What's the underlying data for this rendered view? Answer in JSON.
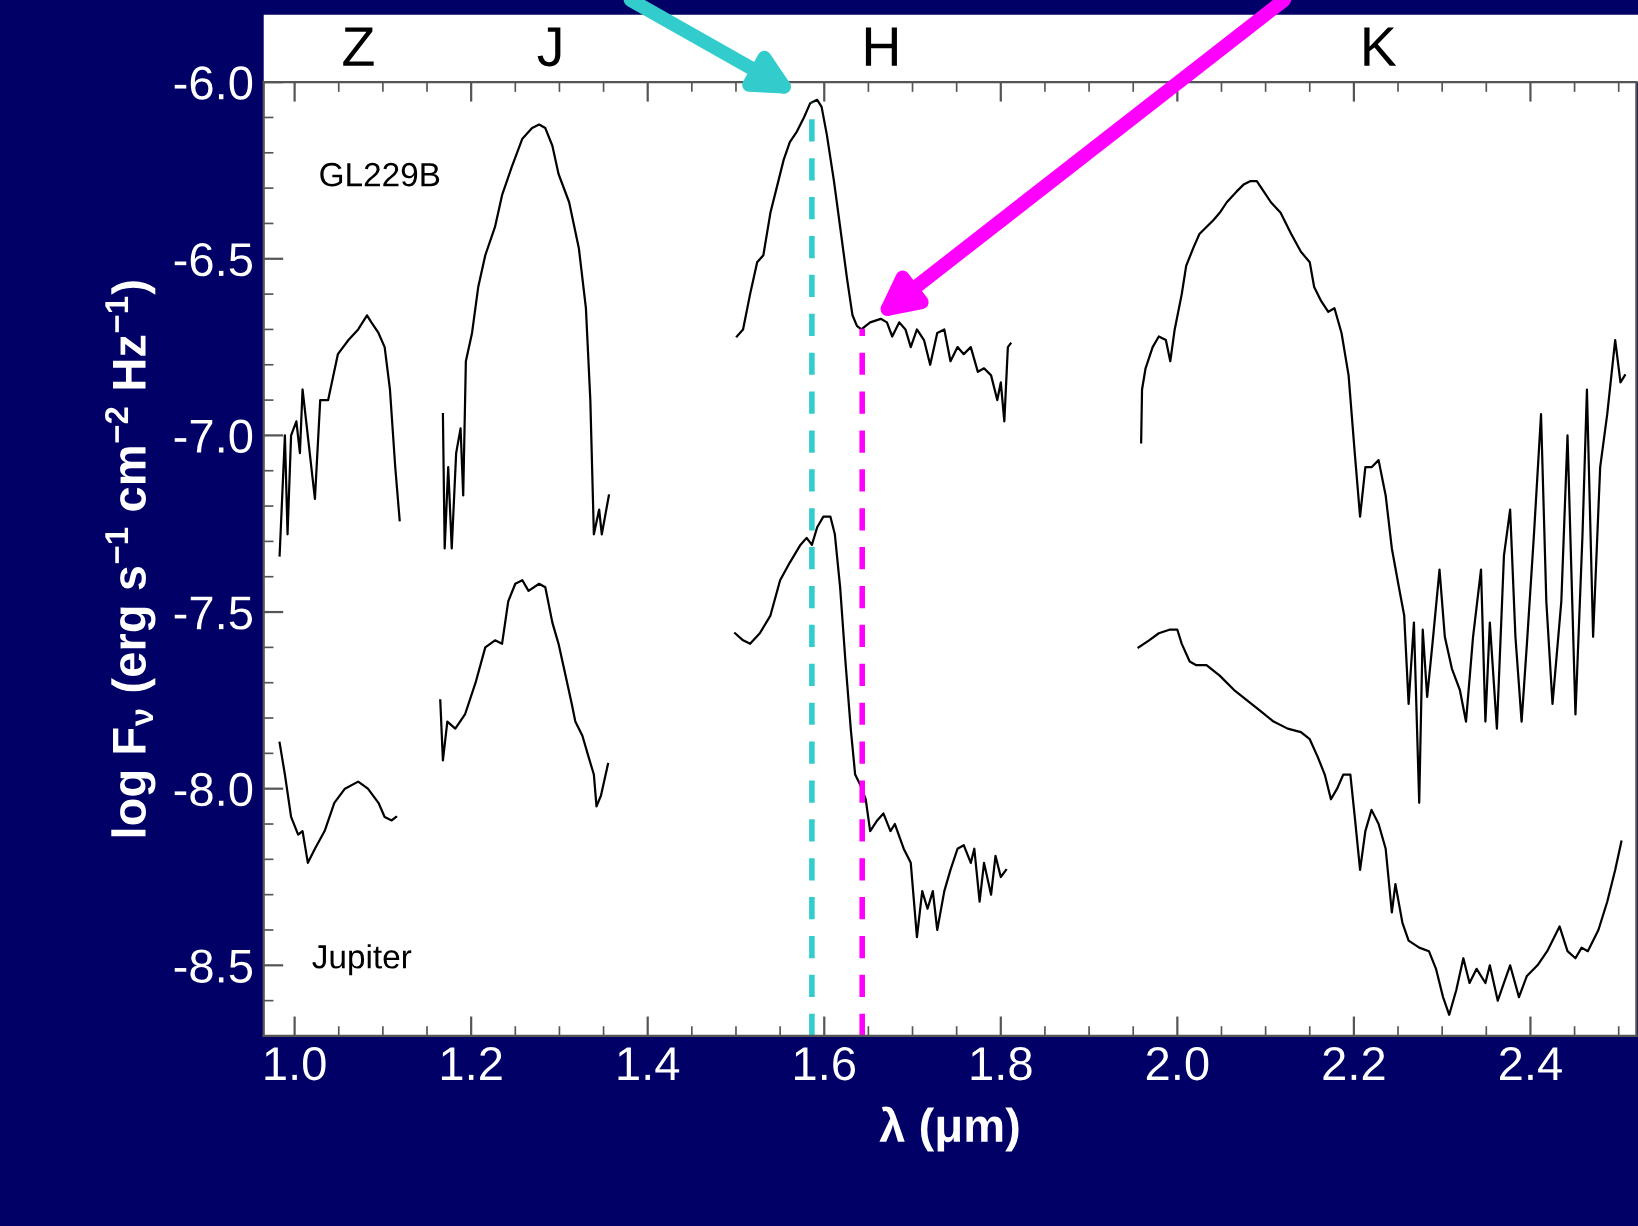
{
  "chart_data": {
    "type": "line",
    "xlabel": "λ (μm)",
    "ylabel": "log F$_{ν}$ (erg s$^{−1}$ cm$^{−2}$ Hz$^{−1}$)",
    "xlim": [
      0.965,
      2.52
    ],
    "ylim": [
      -8.7,
      -6.0
    ],
    "xticks": [
      {
        "value": 1,
        "label": "1.0"
      },
      1.2,
      1.4,
      1.6,
      1.8,
      {
        "value": 2,
        "label": "2.0"
      },
      2.2,
      2.4
    ],
    "yticks": [
      {
        "value": -6,
        "label": "-6.0"
      },
      -6.5,
      {
        "value": -7,
        "label": "-7.0"
      },
      -7.5,
      {
        "value": -8,
        "label": "-8.0"
      },
      -8.5
    ],
    "grid": false,
    "legend": false,
    "marker": "none",
    "line_style": "solid",
    "annotations": [
      "Z",
      "J",
      "H",
      "K"
    ],
    "ref_lines": [
      {
        "axis": "x",
        "value": 1.586,
        "label": null,
        "color": "#33cccc",
        "line_style": "dashed"
      },
      {
        "axis": "x",
        "value": 1.643,
        "label": null,
        "color": "#ff00ff",
        "line_style": "dashed"
      }
    ],
    "series": [
      {
        "name": "GL229B",
        "color": "#000000",
        "x": [
          0.983,
          0.989,
          0.992,
          0.996,
          1.002,
          1.006,
          1.009,
          1.014,
          1.023,
          1.029,
          1.038,
          1.049,
          1.061,
          1.072,
          1.082,
          1.087,
          1.095,
          1.102,
          1.108,
          1.114,
          1.119,
          1.14,
          1.168,
          1.17,
          1.174,
          1.178,
          1.183,
          1.188,
          1.191,
          1.194,
          1.201,
          1.208,
          1.216,
          1.227,
          1.235,
          1.246,
          1.258,
          1.269,
          1.277,
          1.284,
          1.292,
          1.299,
          1.311,
          1.322,
          1.33,
          1.335,
          1.339,
          1.345,
          1.348,
          1.356,
          1.42,
          1.501,
          1.508,
          1.516,
          1.524,
          1.531,
          1.539,
          1.546,
          1.554,
          1.561,
          1.569,
          1.577,
          1.584,
          1.592,
          1.597,
          1.603,
          1.611,
          1.618,
          1.626,
          1.632,
          1.637,
          1.642,
          1.652,
          1.664,
          1.671,
          1.677,
          1.685,
          1.692,
          1.698,
          1.705,
          1.713,
          1.72,
          1.728,
          1.736,
          1.743,
          1.751,
          1.758,
          1.766,
          1.774,
          1.781,
          1.789,
          1.796,
          1.8,
          1.804,
          1.808,
          1.811,
          1.88,
          1.959,
          1.96,
          1.964,
          1.972,
          1.979,
          1.987,
          1.992,
          1.997,
          2.005,
          2.01,
          2.018,
          2.025,
          2.033,
          2.041,
          2.048,
          2.056,
          2.067,
          2.075,
          2.083,
          2.09,
          2.098,
          2.106,
          2.117,
          2.129,
          2.14,
          2.15,
          2.155,
          2.163,
          2.171,
          2.178,
          2.186,
          2.194,
          2.201,
          2.207,
          2.213,
          2.22,
          2.228,
          2.236,
          2.243,
          2.251,
          2.257,
          2.262,
          2.268,
          2.274,
          2.278,
          2.283,
          2.289,
          2.297,
          2.303,
          2.311,
          2.32,
          2.327,
          2.335,
          2.344,
          2.349,
          2.354,
          2.362,
          2.37,
          2.377,
          2.383,
          2.39,
          2.396,
          2.404,
          2.412,
          2.418,
          2.425,
          2.435,
          2.442,
          2.451,
          2.459,
          2.464,
          2.471,
          2.479,
          2.487,
          2.496,
          2.502,
          2.507
        ],
        "values": [
          -7.34,
          -7.0,
          -7.28,
          -7.0,
          -6.96,
          -7.05,
          -6.87,
          -6.98,
          -7.18,
          -6.9,
          -6.9,
          -6.77,
          -6.73,
          -6.7,
          -6.66,
          -6.68,
          -6.71,
          -6.75,
          -6.87,
          -7.09,
          -7.24,
          null,
          -6.94,
          -7.32,
          -7.09,
          -7.32,
          -7.05,
          -6.98,
          -7.17,
          -6.79,
          -6.71,
          -6.58,
          -6.49,
          -6.41,
          -6.32,
          -6.24,
          -6.16,
          -6.13,
          -6.12,
          -6.13,
          -6.18,
          -6.26,
          -6.34,
          -6.47,
          -6.64,
          -6.9,
          -7.28,
          -7.21,
          -7.28,
          -7.17,
          null,
          -6.72,
          -6.7,
          -6.6,
          -6.51,
          -6.49,
          -6.37,
          -6.3,
          -6.22,
          -6.17,
          -6.14,
          -6.1,
          -6.06,
          -6.05,
          -6.07,
          -6.15,
          -6.28,
          -6.41,
          -6.56,
          -6.66,
          -6.69,
          -6.7,
          -6.68,
          -6.67,
          -6.68,
          -6.72,
          -6.68,
          -6.7,
          -6.75,
          -6.7,
          -6.73,
          -6.8,
          -6.71,
          -6.7,
          -6.79,
          -6.75,
          -6.77,
          -6.75,
          -6.82,
          -6.81,
          -6.83,
          -6.9,
          -6.85,
          -6.96,
          -6.75,
          -6.74,
          null,
          -7.02,
          -6.87,
          -6.81,
          -6.75,
          -6.72,
          -6.73,
          -6.79,
          -6.7,
          -6.6,
          -6.52,
          -6.47,
          -6.43,
          -6.41,
          -6.39,
          -6.37,
          -6.34,
          -6.31,
          -6.29,
          -6.28,
          -6.28,
          -6.31,
          -6.34,
          -6.37,
          -6.43,
          -6.48,
          -6.51,
          -6.58,
          -6.62,
          -6.65,
          -6.64,
          -6.71,
          -6.83,
          -7.05,
          -7.23,
          -7.09,
          -7.09,
          -7.07,
          -7.17,
          -7.32,
          -7.43,
          -7.51,
          -7.76,
          -7.53,
          -8.04,
          -7.55,
          -7.74,
          -7.59,
          -7.38,
          -7.57,
          -7.66,
          -7.72,
          -7.81,
          -7.57,
          -7.38,
          -7.81,
          -7.53,
          -7.83,
          -7.34,
          -7.21,
          -7.57,
          -7.81,
          -7.59,
          -7.28,
          -6.94,
          -7.47,
          -7.76,
          -7.47,
          -7.0,
          -7.79,
          -7.28,
          -6.87,
          -7.57,
          -7.09,
          -6.94,
          -6.73,
          -6.85,
          -6.83
        ]
      },
      {
        "name": "Jupiter",
        "color": "#000000",
        "x": [
          0.983,
          0.989,
          0.996,
          1.004,
          1.009,
          1.015,
          1.023,
          1.034,
          1.045,
          1.057,
          1.072,
          1.083,
          1.095,
          1.102,
          1.11,
          1.115,
          1.14,
          1.165,
          1.168,
          1.173,
          1.182,
          1.193,
          1.205,
          1.216,
          1.227,
          1.235,
          1.242,
          1.25,
          1.258,
          1.265,
          1.277,
          1.284,
          1.292,
          1.299,
          1.307,
          1.314,
          1.318,
          1.326,
          1.333,
          1.339,
          1.342,
          1.347,
          1.355,
          1.42,
          1.499,
          1.508,
          1.516,
          1.527,
          1.539,
          1.55,
          1.561,
          1.573,
          1.58,
          1.586,
          1.592,
          1.599,
          1.607,
          1.612,
          1.618,
          1.624,
          1.63,
          1.635,
          1.641,
          1.647,
          1.652,
          1.66,
          1.667,
          1.675,
          1.68,
          1.69,
          1.698,
          1.705,
          1.711,
          1.717,
          1.723,
          1.728,
          1.736,
          1.743,
          1.751,
          1.758,
          1.766,
          1.77,
          1.776,
          1.781,
          1.789,
          1.794,
          1.8,
          1.806,
          1.88,
          1.956,
          1.968,
          1.979,
          1.991,
          2.0,
          2.005,
          2.014,
          2.021,
          2.033,
          2.048,
          2.064,
          2.079,
          2.094,
          2.109,
          2.125,
          2.14,
          2.15,
          2.159,
          2.167,
          2.174,
          2.181,
          2.188,
          2.196,
          2.201,
          2.207,
          2.213,
          2.22,
          2.228,
          2.236,
          2.243,
          2.247,
          2.255,
          2.262,
          2.274,
          2.285,
          2.293,
          2.301,
          2.308,
          2.316,
          2.324,
          2.331,
          2.339,
          2.349,
          2.354,
          2.363,
          2.37,
          2.377,
          2.387,
          2.396,
          2.408,
          2.419,
          2.433,
          2.442,
          2.451,
          2.458,
          2.465,
          2.477,
          2.487,
          2.496,
          2.503
        ],
        "values": [
          -7.87,
          -7.96,
          -8.08,
          -8.13,
          -8.12,
          -8.21,
          -8.17,
          -8.12,
          -8.04,
          -8.0,
          -7.98,
          -8.0,
          -8.04,
          -8.08,
          -8.09,
          -8.08,
          null,
          -7.75,
          -7.92,
          -7.81,
          -7.83,
          -7.79,
          -7.7,
          -7.6,
          -7.58,
          -7.59,
          -7.47,
          -7.42,
          -7.41,
          -7.44,
          -7.42,
          -7.43,
          -7.53,
          -7.59,
          -7.68,
          -7.76,
          -7.81,
          -7.85,
          -7.91,
          -7.96,
          -8.05,
          -8.02,
          -7.93,
          null,
          -7.56,
          -7.58,
          -7.59,
          -7.56,
          -7.51,
          -7.41,
          -7.36,
          -7.31,
          -7.29,
          -7.31,
          -7.26,
          -7.23,
          -7.23,
          -7.28,
          -7.43,
          -7.64,
          -7.83,
          -7.96,
          -7.99,
          -8.03,
          -8.12,
          -8.09,
          -8.07,
          -8.12,
          -8.1,
          -8.17,
          -8.21,
          -8.42,
          -8.29,
          -8.34,
          -8.29,
          -8.4,
          -8.29,
          -8.23,
          -8.17,
          -8.16,
          -8.21,
          -8.17,
          -8.32,
          -8.21,
          -8.3,
          -8.19,
          -8.25,
          -8.23,
          null,
          -7.6,
          -7.58,
          -7.56,
          -7.55,
          -7.55,
          -7.59,
          -7.64,
          -7.65,
          -7.65,
          -7.68,
          -7.72,
          -7.75,
          -7.78,
          -7.81,
          -7.83,
          -7.84,
          -7.86,
          -7.91,
          -7.96,
          -8.03,
          -8.0,
          -7.96,
          -7.96,
          -8.08,
          -8.23,
          -8.12,
          -8.06,
          -8.1,
          -8.17,
          -8.35,
          -8.27,
          -8.38,
          -8.43,
          -8.45,
          -8.46,
          -8.51,
          -8.59,
          -8.64,
          -8.57,
          -8.48,
          -8.55,
          -8.51,
          -8.55,
          -8.5,
          -8.6,
          -8.55,
          -8.5,
          -8.59,
          -8.53,
          -8.5,
          -8.46,
          -8.39,
          -8.46,
          -8.48,
          -8.45,
          -8.46,
          -8.4,
          -8.32,
          -8.23,
          -8.15
        ]
      }
    ]
  }
}
